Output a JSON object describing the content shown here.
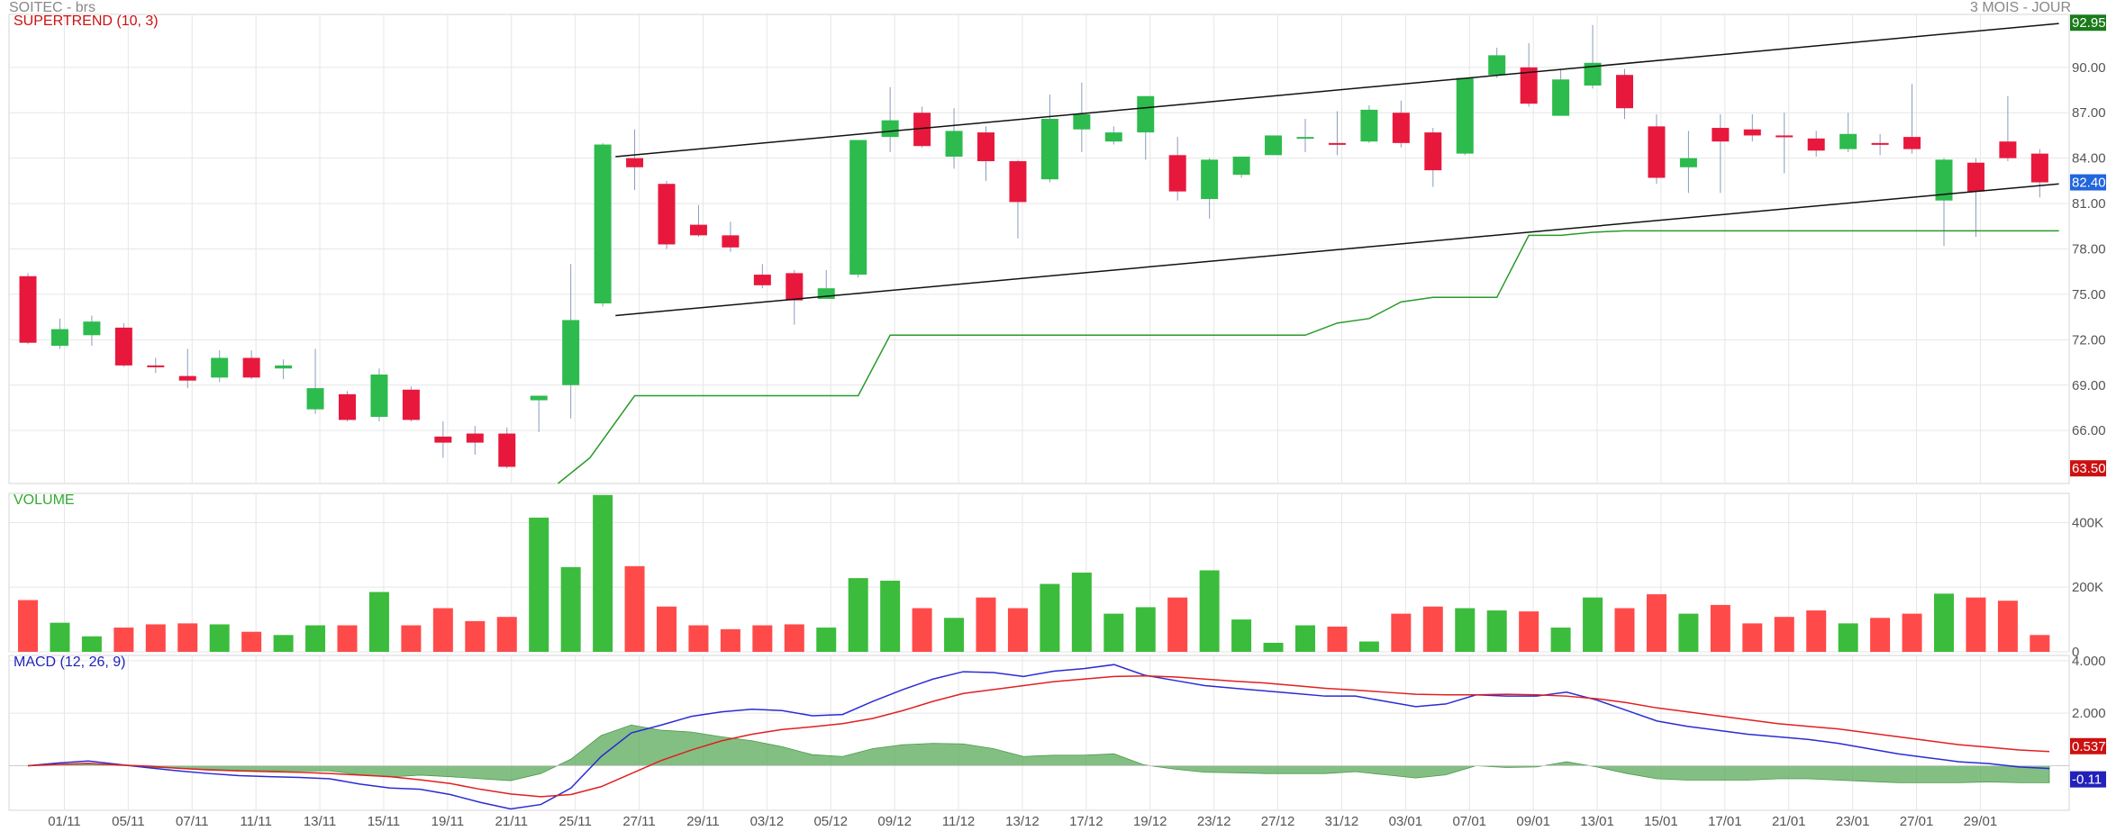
{
  "header": {
    "symbol": "SOITEC - brs",
    "period": "3 MOIS - JOUR"
  },
  "colors": {
    "up": "#2dbb4e",
    "down": "#e8183d",
    "volume_up": "#3cbc3c",
    "volume_down": "#ff4a4a",
    "supertrend": "#2a9a2a",
    "macd_line": "#2b2bd4",
    "signal_line": "#e02020",
    "histogram": "#59aa59",
    "channel": "#111111",
    "grid": "#e6e6e6"
  },
  "chart_data": [
    {
      "type": "candlestick",
      "title": "SUPERTREND (10, 3)",
      "ylim": [
        62.5,
        93.5
      ],
      "y_ticks": [
        "66.00",
        "69.00",
        "72.00",
        "75.00",
        "78.00",
        "81.00",
        "84.00",
        "87.00",
        "90.00"
      ],
      "x_labels": [
        "01/11",
        "05/11",
        "07/11",
        "11/11",
        "13/11",
        "15/11",
        "19/11",
        "21/11",
        "25/11",
        "27/11",
        "29/11",
        "03/12",
        "05/12",
        "09/12",
        "11/12",
        "13/12",
        "17/12",
        "19/12",
        "23/12",
        "27/12",
        "31/12",
        "03/01",
        "07/01",
        "09/01",
        "13/01",
        "15/01",
        "17/01",
        "21/01",
        "23/01",
        "27/01",
        "29/01"
      ],
      "candles": [
        {
          "o": 76.2,
          "h": 76.4,
          "l": 71.7,
          "c": 71.8
        },
        {
          "o": 71.6,
          "h": 73.4,
          "l": 71.4,
          "c": 72.7
        },
        {
          "o": 72.3,
          "h": 73.6,
          "l": 71.6,
          "c": 73.2
        },
        {
          "o": 72.8,
          "h": 73.1,
          "l": 70.2,
          "c": 70.3
        },
        {
          "o": 70.3,
          "h": 70.8,
          "l": 69.8,
          "c": 70.2
        },
        {
          "o": 69.6,
          "h": 71.4,
          "l": 68.8,
          "c": 69.3
        },
        {
          "o": 69.5,
          "h": 71.3,
          "l": 69.2,
          "c": 70.8
        },
        {
          "o": 70.8,
          "h": 71.3,
          "l": 69.4,
          "c": 69.5
        },
        {
          "o": 70.1,
          "h": 70.7,
          "l": 69.4,
          "c": 70.3
        },
        {
          "o": 67.4,
          "h": 71.4,
          "l": 67.1,
          "c": 68.8
        },
        {
          "o": 68.4,
          "h": 68.6,
          "l": 66.6,
          "c": 66.7
        },
        {
          "o": 66.9,
          "h": 70.1,
          "l": 66.6,
          "c": 69.7
        },
        {
          "o": 68.7,
          "h": 68.9,
          "l": 66.6,
          "c": 66.7
        },
        {
          "o": 65.6,
          "h": 66.6,
          "l": 64.2,
          "c": 65.2
        },
        {
          "o": 65.8,
          "h": 66.3,
          "l": 64.4,
          "c": 65.2
        },
        {
          "o": 65.8,
          "h": 66.2,
          "l": 63.5,
          "c": 63.6
        },
        {
          "o": 68.0,
          "h": 68.3,
          "l": 65.9,
          "c": 68.3
        },
        {
          "o": 69.0,
          "h": 77.0,
          "l": 66.8,
          "c": 73.3
        },
        {
          "o": 74.4,
          "h": 85.0,
          "l": 74.2,
          "c": 84.9
        },
        {
          "o": 84.0,
          "h": 85.9,
          "l": 81.9,
          "c": 83.4
        },
        {
          "o": 82.3,
          "h": 82.5,
          "l": 78.0,
          "c": 78.3
        },
        {
          "o": 79.6,
          "h": 80.9,
          "l": 78.8,
          "c": 78.9
        },
        {
          "o": 78.9,
          "h": 79.8,
          "l": 77.8,
          "c": 78.1
        },
        {
          "o": 76.3,
          "h": 77.0,
          "l": 75.4,
          "c": 75.6
        },
        {
          "o": 76.4,
          "h": 76.6,
          "l": 73.0,
          "c": 74.6
        },
        {
          "o": 74.7,
          "h": 76.6,
          "l": 74.7,
          "c": 75.4
        },
        {
          "o": 76.3,
          "h": 85.2,
          "l": 76.1,
          "c": 85.2
        },
        {
          "o": 85.4,
          "h": 88.7,
          "l": 84.4,
          "c": 86.5
        },
        {
          "o": 87.0,
          "h": 87.4,
          "l": 84.7,
          "c": 84.8
        },
        {
          "o": 84.1,
          "h": 87.3,
          "l": 83.3,
          "c": 85.8
        },
        {
          "o": 85.7,
          "h": 86.1,
          "l": 82.5,
          "c": 83.8
        },
        {
          "o": 83.8,
          "h": 83.9,
          "l": 78.7,
          "c": 81.1
        },
        {
          "o": 82.6,
          "h": 88.2,
          "l": 82.4,
          "c": 86.6
        },
        {
          "o": 85.9,
          "h": 89.0,
          "l": 84.4,
          "c": 86.9
        },
        {
          "o": 85.1,
          "h": 86.1,
          "l": 84.9,
          "c": 85.7
        },
        {
          "o": 85.7,
          "h": 88.1,
          "l": 83.9,
          "c": 88.1
        },
        {
          "o": 84.2,
          "h": 85.4,
          "l": 81.2,
          "c": 81.8
        },
        {
          "o": 81.3,
          "h": 84.0,
          "l": 80.0,
          "c": 83.9
        },
        {
          "o": 82.9,
          "h": 84.1,
          "l": 82.7,
          "c": 84.1
        },
        {
          "o": 84.2,
          "h": 85.5,
          "l": 84.2,
          "c": 85.5
        },
        {
          "o": 85.4,
          "h": 86.6,
          "l": 84.4,
          "c": 85.4
        },
        {
          "o": 85.0,
          "h": 87.1,
          "l": 84.2,
          "c": 84.9
        },
        {
          "o": 85.1,
          "h": 87.5,
          "l": 85.0,
          "c": 87.2
        },
        {
          "o": 87.0,
          "h": 87.8,
          "l": 84.7,
          "c": 85.0
        },
        {
          "o": 85.7,
          "h": 86.0,
          "l": 82.1,
          "c": 83.2
        },
        {
          "o": 84.3,
          "h": 89.3,
          "l": 84.2,
          "c": 89.3
        },
        {
          "o": 89.5,
          "h": 91.3,
          "l": 89.3,
          "c": 90.8
        },
        {
          "o": 90.0,
          "h": 91.6,
          "l": 87.4,
          "c": 87.6
        },
        {
          "o": 86.8,
          "h": 89.9,
          "l": 86.8,
          "c": 89.2
        },
        {
          "o": 88.8,
          "h": 92.8,
          "l": 88.6,
          "c": 90.3
        },
        {
          "o": 89.5,
          "h": 89.9,
          "l": 86.6,
          "c": 87.3
        },
        {
          "o": 86.1,
          "h": 86.9,
          "l": 82.3,
          "c": 82.7
        },
        {
          "o": 83.4,
          "h": 85.8,
          "l": 81.7,
          "c": 84.0
        },
        {
          "o": 86.0,
          "h": 86.9,
          "l": 81.7,
          "c": 85.1
        },
        {
          "o": 85.9,
          "h": 86.9,
          "l": 85.1,
          "c": 85.5
        },
        {
          "o": 85.5,
          "h": 87.0,
          "l": 83.0,
          "c": 85.4
        },
        {
          "o": 85.3,
          "h": 85.8,
          "l": 84.1,
          "c": 84.5
        },
        {
          "o": 84.6,
          "h": 87.0,
          "l": 84.4,
          "c": 85.6
        },
        {
          "o": 85.0,
          "h": 85.6,
          "l": 84.2,
          "c": 84.9
        },
        {
          "o": 85.4,
          "h": 88.9,
          "l": 84.3,
          "c": 84.6
        },
        {
          "o": 81.2,
          "h": 84.0,
          "l": 78.2,
          "c": 83.9
        },
        {
          "o": 83.7,
          "h": 84.0,
          "l": 78.8,
          "c": 81.8
        },
        {
          "o": 85.1,
          "h": 88.1,
          "l": 83.8,
          "c": 84.0
        },
        {
          "o": 84.3,
          "h": 84.6,
          "l": 81.4,
          "c": 82.4
        }
      ],
      "supertrend": [
        {
          "i": 16.6,
          "v": 62.5
        },
        {
          "i": 17.6,
          "v": 64.2
        },
        {
          "i": 19,
          "v": 68.3
        },
        {
          "i": 26,
          "v": 68.3
        },
        {
          "i": 27,
          "v": 72.3
        },
        {
          "i": 40,
          "v": 72.3
        },
        {
          "i": 41,
          "v": 73.1
        },
        {
          "i": 42,
          "v": 73.4
        },
        {
          "i": 43,
          "v": 74.5
        },
        {
          "i": 44,
          "v": 74.8
        },
        {
          "i": 46,
          "v": 74.8
        },
        {
          "i": 47,
          "v": 78.9
        },
        {
          "i": 48,
          "v": 78.9
        },
        {
          "i": 49,
          "v": 79.1
        },
        {
          "i": 50,
          "v": 79.2
        },
        {
          "i": 51,
          "v": 79.2
        },
        {
          "i": 63.6,
          "v": 79.2
        }
      ],
      "channel": [
        {
          "from": {
            "i": 18.4,
            "v": 84.1
          },
          "to": {
            "i": 63.6,
            "v": 92.9
          }
        },
        {
          "from": {
            "i": 18.4,
            "v": 73.6
          },
          "to": {
            "i": 63.6,
            "v": 82.3
          }
        }
      ],
      "price_labels": [
        {
          "text": "92.95",
          "value": 92.95,
          "color": "#1a7a1a"
        },
        {
          "text": "82.40",
          "value": 82.4,
          "color": "#2266dd"
        },
        {
          "text": "63.50",
          "value": 63.5,
          "color": "#cc1111"
        }
      ]
    },
    {
      "type": "bar",
      "title": "VOLUME",
      "ylim": [
        0,
        490000
      ],
      "y_ticks": [
        {
          "value": 0,
          "label": "0"
        },
        {
          "value": 200000,
          "label": "200K"
        },
        {
          "value": 400000,
          "label": "400K"
        }
      ],
      "values": [
        160000,
        90000,
        48000,
        75000,
        85000,
        88000,
        85000,
        62000,
        52000,
        82000,
        82000,
        185000,
        82000,
        135000,
        95000,
        108000,
        415000,
        262000,
        485000,
        265000,
        140000,
        82000,
        70000,
        82000,
        85000,
        75000,
        228000,
        220000,
        135000,
        105000,
        168000,
        135000,
        210000,
        245000,
        118000,
        138000,
        168000,
        252000,
        100000,
        28000,
        82000,
        78000,
        32000,
        118000,
        140000,
        135000,
        128000,
        125000,
        75000,
        168000,
        135000,
        178000,
        118000,
        145000,
        88000,
        108000,
        128000,
        88000,
        105000,
        118000,
        180000,
        168000,
        158000,
        52000
      ]
    },
    {
      "type": "line",
      "title": "MACD (12, 26, 9)",
      "ylim": [
        -1.7,
        4.2
      ],
      "y_ticks": [
        {
          "value": 2,
          "label": "2.000"
        },
        {
          "value": 4,
          "label": "4.000"
        }
      ],
      "series": [
        {
          "name": "MACD",
          "color": "#2b2bd4",
          "values": [
            0.0,
            0.1,
            0.18,
            0.05,
            -0.08,
            -0.2,
            -0.3,
            -0.38,
            -0.42,
            -0.45,
            -0.5,
            -0.7,
            -0.85,
            -0.9,
            -1.1,
            -1.4,
            -1.65,
            -1.48,
            -0.85,
            0.35,
            1.25,
            1.55,
            1.88,
            2.05,
            2.15,
            2.1,
            1.9,
            1.95,
            2.45,
            2.9,
            3.3,
            3.58,
            3.55,
            3.4,
            3.6,
            3.7,
            3.85,
            3.45,
            3.25,
            3.05,
            2.95,
            2.85,
            2.75,
            2.65,
            2.65,
            2.45,
            2.25,
            2.35,
            2.7,
            2.65,
            2.65,
            2.8,
            2.5,
            2.1,
            1.7,
            1.5,
            1.35,
            1.2,
            1.1,
            1.0,
            0.85,
            0.65,
            0.45,
            0.3,
            0.15,
            0.08,
            -0.05,
            -0.11
          ]
        },
        {
          "name": "Signal",
          "color": "#e02020",
          "values": [
            0.0,
            0.05,
            0.08,
            0.03,
            -0.02,
            -0.1,
            -0.16,
            -0.2,
            -0.23,
            -0.25,
            -0.3,
            -0.36,
            -0.42,
            -0.54,
            -0.68,
            -0.9,
            -1.08,
            -1.18,
            -1.1,
            -0.8,
            -0.3,
            0.2,
            0.6,
            0.95,
            1.2,
            1.38,
            1.48,
            1.6,
            1.8,
            2.1,
            2.45,
            2.75,
            2.9,
            3.05,
            3.2,
            3.3,
            3.4,
            3.42,
            3.38,
            3.3,
            3.22,
            3.15,
            3.05,
            2.95,
            2.88,
            2.8,
            2.72,
            2.7,
            2.7,
            2.72,
            2.7,
            2.65,
            2.55,
            2.4,
            2.2,
            2.05,
            1.9,
            1.75,
            1.6,
            1.5,
            1.4,
            1.25,
            1.1,
            0.95,
            0.8,
            0.7,
            0.6,
            0.54
          ]
        }
      ],
      "histogram": [
        0.0,
        0.05,
        0.1,
        0.02,
        -0.06,
        -0.1,
        -0.14,
        -0.18,
        -0.19,
        -0.2,
        -0.2,
        -0.34,
        -0.43,
        -0.36,
        -0.42,
        -0.5,
        -0.57,
        -0.3,
        0.25,
        1.15,
        1.55,
        1.35,
        1.28,
        1.1,
        0.95,
        0.72,
        0.42,
        0.35,
        0.65,
        0.8,
        0.85,
        0.83,
        0.65,
        0.35,
        0.4,
        0.4,
        0.45,
        0.03,
        -0.13,
        -0.25,
        -0.27,
        -0.3,
        -0.3,
        -0.3,
        -0.23,
        -0.35,
        -0.47,
        -0.35,
        0.0,
        -0.07,
        -0.05,
        0.15,
        -0.05,
        -0.3,
        -0.5,
        -0.55,
        -0.55,
        -0.55,
        -0.5,
        -0.5,
        -0.55,
        -0.6,
        -0.65,
        -0.65,
        -0.65,
        -0.62,
        -0.65,
        -0.65
      ],
      "value_labels": [
        {
          "text": "0.537",
          "value": 0.537,
          "color": "#cc1111"
        },
        {
          "text": "-0.11",
          "value": -0.11,
          "color": "#2222bb"
        }
      ]
    }
  ]
}
